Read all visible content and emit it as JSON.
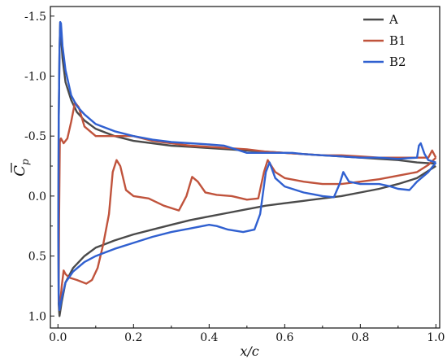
{
  "chart_data": {
    "type": "line",
    "xlabel": "x/c",
    "ylabel": "C̄p",
    "ylabel_main": "C",
    "ylabel_sub": "p",
    "xlim": [
      -0.02,
      1.01
    ],
    "ylim": [
      -1.58,
      1.1
    ],
    "y_inverted": true,
    "grid": false,
    "legend_position": "top-right",
    "x_ticks": [
      0.0,
      0.2,
      0.4,
      0.6,
      0.8,
      1.0
    ],
    "x_tick_labels": [
      "0.0",
      "0.2",
      "0.4",
      "0.6",
      "0.8",
      "1.0"
    ],
    "y_ticks": [
      -1.5,
      -1.0,
      -0.5,
      0.0,
      0.5,
      1.0
    ],
    "y_tick_labels": [
      "-1.5",
      "-1.0",
      "-0.5",
      "0.0",
      "0.5",
      "1.0"
    ],
    "series": [
      {
        "name": "A",
        "color": "#4a4a4a",
        "points": [
          [
            1.0,
            -0.27
          ],
          [
            0.95,
            -0.28
          ],
          [
            0.9,
            -0.3
          ],
          [
            0.85,
            -0.31
          ],
          [
            0.8,
            -0.32
          ],
          [
            0.75,
            -0.33
          ],
          [
            0.7,
            -0.34
          ],
          [
            0.65,
            -0.35
          ],
          [
            0.6,
            -0.36
          ],
          [
            0.55,
            -0.37
          ],
          [
            0.5,
            -0.38
          ],
          [
            0.45,
            -0.39
          ],
          [
            0.4,
            -0.4
          ],
          [
            0.35,
            -0.41
          ],
          [
            0.3,
            -0.42
          ],
          [
            0.25,
            -0.44
          ],
          [
            0.2,
            -0.46
          ],
          [
            0.15,
            -0.5
          ],
          [
            0.1,
            -0.56
          ],
          [
            0.07,
            -0.63
          ],
          [
            0.05,
            -0.7
          ],
          [
            0.035,
            -0.8
          ],
          [
            0.02,
            -0.95
          ],
          [
            0.012,
            -1.15
          ],
          [
            0.008,
            -1.35
          ],
          [
            0.006,
            -1.45
          ],
          [
            0.004,
            -1.2
          ],
          [
            0.002,
            -0.6
          ],
          [
            0.001,
            0.3
          ],
          [
            0.002,
            0.9
          ],
          [
            0.004,
            1.0
          ],
          [
            0.01,
            0.88
          ],
          [
            0.02,
            0.72
          ],
          [
            0.04,
            0.6
          ],
          [
            0.07,
            0.5
          ],
          [
            0.1,
            0.43
          ],
          [
            0.15,
            0.37
          ],
          [
            0.2,
            0.32
          ],
          [
            0.25,
            0.28
          ],
          [
            0.3,
            0.24
          ],
          [
            0.35,
            0.2
          ],
          [
            0.4,
            0.17
          ],
          [
            0.45,
            0.14
          ],
          [
            0.5,
            0.11
          ],
          [
            0.55,
            0.08
          ],
          [
            0.6,
            0.06
          ],
          [
            0.65,
            0.04
          ],
          [
            0.7,
            0.02
          ],
          [
            0.75,
            0.0
          ],
          [
            0.8,
            -0.03
          ],
          [
            0.85,
            -0.06
          ],
          [
            0.9,
            -0.1
          ],
          [
            0.95,
            -0.15
          ],
          [
            1.0,
            -0.25
          ]
        ]
      },
      {
        "name": "B1",
        "color": "#c0533c",
        "points": [
          [
            1.0,
            -0.32
          ],
          [
            0.99,
            -0.38
          ],
          [
            0.98,
            -0.32
          ],
          [
            0.95,
            -0.32
          ],
          [
            0.9,
            -0.32
          ],
          [
            0.85,
            -0.32
          ],
          [
            0.8,
            -0.33
          ],
          [
            0.75,
            -0.34
          ],
          [
            0.7,
            -0.34
          ],
          [
            0.65,
            -0.35
          ],
          [
            0.6,
            -0.36
          ],
          [
            0.55,
            -0.37
          ],
          [
            0.5,
            -0.39
          ],
          [
            0.45,
            -0.4
          ],
          [
            0.4,
            -0.41
          ],
          [
            0.35,
            -0.42
          ],
          [
            0.3,
            -0.44
          ],
          [
            0.25,
            -0.46
          ],
          [
            0.2,
            -0.5
          ],
          [
            0.15,
            -0.5
          ],
          [
            0.1,
            -0.5
          ],
          [
            0.07,
            -0.58
          ],
          [
            0.055,
            -0.74
          ],
          [
            0.045,
            -0.78
          ],
          [
            0.035,
            -0.62
          ],
          [
            0.025,
            -0.48
          ],
          [
            0.015,
            -0.44
          ],
          [
            0.008,
            -0.48
          ],
          [
            0.005,
            -0.45
          ],
          [
            0.003,
            0.2
          ],
          [
            0.002,
            0.85
          ],
          [
            0.004,
            0.95
          ],
          [
            0.01,
            0.75
          ],
          [
            0.015,
            0.62
          ],
          [
            0.02,
            0.65
          ],
          [
            0.03,
            0.68
          ],
          [
            0.05,
            0.7
          ],
          [
            0.075,
            0.73
          ],
          [
            0.09,
            0.7
          ],
          [
            0.105,
            0.6
          ],
          [
            0.12,
            0.4
          ],
          [
            0.135,
            0.15
          ],
          [
            0.145,
            -0.2
          ],
          [
            0.155,
            -0.3
          ],
          [
            0.165,
            -0.25
          ],
          [
            0.18,
            -0.05
          ],
          [
            0.2,
            0.0
          ],
          [
            0.24,
            0.02
          ],
          [
            0.28,
            0.08
          ],
          [
            0.32,
            0.12
          ],
          [
            0.34,
            0.0
          ],
          [
            0.355,
            -0.16
          ],
          [
            0.37,
            -0.12
          ],
          [
            0.39,
            -0.03
          ],
          [
            0.42,
            -0.01
          ],
          [
            0.46,
            0.0
          ],
          [
            0.5,
            0.03
          ],
          [
            0.53,
            0.02
          ],
          [
            0.545,
            -0.2
          ],
          [
            0.555,
            -0.3
          ],
          [
            0.575,
            -0.2
          ],
          [
            0.6,
            -0.15
          ],
          [
            0.65,
            -0.12
          ],
          [
            0.7,
            -0.1
          ],
          [
            0.75,
            -0.1
          ],
          [
            0.8,
            -0.12
          ],
          [
            0.85,
            -0.14
          ],
          [
            0.9,
            -0.17
          ],
          [
            0.95,
            -0.2
          ],
          [
            0.98,
            -0.26
          ],
          [
            1.0,
            -0.32
          ]
        ]
      },
      {
        "name": "B2",
        "color": "#3060d0",
        "points": [
          [
            1.0,
            -0.28
          ],
          [
            0.98,
            -0.3
          ],
          [
            0.97,
            -0.35
          ],
          [
            0.96,
            -0.44
          ],
          [
            0.955,
            -0.42
          ],
          [
            0.95,
            -0.32
          ],
          [
            0.9,
            -0.31
          ],
          [
            0.85,
            -0.32
          ],
          [
            0.8,
            -0.32
          ],
          [
            0.75,
            -0.33
          ],
          [
            0.7,
            -0.34
          ],
          [
            0.65,
            -0.35
          ],
          [
            0.62,
            -0.36
          ],
          [
            0.58,
            -0.36
          ],
          [
            0.55,
            -0.36
          ],
          [
            0.5,
            -0.36
          ],
          [
            0.48,
            -0.38
          ],
          [
            0.46,
            -0.4
          ],
          [
            0.44,
            -0.42
          ],
          [
            0.4,
            -0.43
          ],
          [
            0.35,
            -0.44
          ],
          [
            0.3,
            -0.45
          ],
          [
            0.25,
            -0.47
          ],
          [
            0.2,
            -0.5
          ],
          [
            0.15,
            -0.54
          ],
          [
            0.1,
            -0.6
          ],
          [
            0.07,
            -0.68
          ],
          [
            0.05,
            -0.75
          ],
          [
            0.035,
            -0.84
          ],
          [
            0.02,
            -1.05
          ],
          [
            0.012,
            -1.25
          ],
          [
            0.008,
            -1.44
          ],
          [
            0.006,
            -1.45
          ],
          [
            0.004,
            -1.2
          ],
          [
            0.002,
            -0.6
          ],
          [
            0.001,
            0.3
          ],
          [
            0.002,
            0.85
          ],
          [
            0.004,
            0.95
          ],
          [
            0.01,
            0.85
          ],
          [
            0.02,
            0.72
          ],
          [
            0.04,
            0.63
          ],
          [
            0.07,
            0.55
          ],
          [
            0.1,
            0.5
          ],
          [
            0.15,
            0.44
          ],
          [
            0.2,
            0.39
          ],
          [
            0.25,
            0.34
          ],
          [
            0.3,
            0.3
          ],
          [
            0.35,
            0.27
          ],
          [
            0.4,
            0.24
          ],
          [
            0.42,
            0.25
          ],
          [
            0.45,
            0.28
          ],
          [
            0.49,
            0.3
          ],
          [
            0.52,
            0.28
          ],
          [
            0.535,
            0.15
          ],
          [
            0.55,
            -0.2
          ],
          [
            0.56,
            -0.28
          ],
          [
            0.575,
            -0.15
          ],
          [
            0.6,
            -0.08
          ],
          [
            0.65,
            -0.03
          ],
          [
            0.7,
            0.0
          ],
          [
            0.73,
            0.01
          ],
          [
            0.745,
            -0.1
          ],
          [
            0.755,
            -0.2
          ],
          [
            0.77,
            -0.12
          ],
          [
            0.8,
            -0.1
          ],
          [
            0.85,
            -0.1
          ],
          [
            0.88,
            -0.08
          ],
          [
            0.9,
            -0.06
          ],
          [
            0.93,
            -0.05
          ],
          [
            0.95,
            -0.12
          ],
          [
            0.98,
            -0.2
          ],
          [
            1.0,
            -0.28
          ]
        ]
      }
    ]
  }
}
